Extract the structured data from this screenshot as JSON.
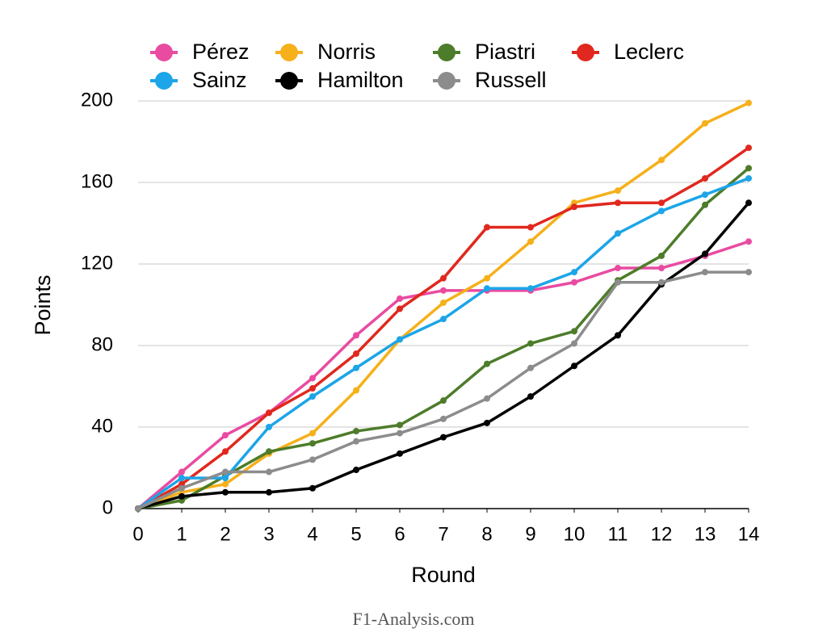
{
  "chart_data": {
    "type": "line",
    "x_label": "Round",
    "y_label": "Points",
    "footer": "F1-Analysis.com",
    "x": [
      0,
      1,
      2,
      3,
      4,
      5,
      6,
      7,
      8,
      9,
      10,
      11,
      12,
      13,
      14
    ],
    "xlim": [
      0,
      14
    ],
    "xticks": [
      0,
      1,
      2,
      3,
      4,
      5,
      6,
      7,
      8,
      9,
      10,
      11,
      12,
      13,
      14
    ],
    "ylim": [
      0,
      200
    ],
    "yticks": [
      0,
      40,
      80,
      120,
      160,
      200
    ],
    "grid": true,
    "legend": "top",
    "series": [
      {
        "name": "Pérez",
        "color": "#e94ba1",
        "values": [
          0,
          18,
          36,
          47,
          64,
          85,
          103,
          107,
          107,
          107,
          111,
          118,
          118,
          124,
          131
        ]
      },
      {
        "name": "Norris",
        "color": "#f5b01a",
        "values": [
          0,
          8,
          12,
          27,
          37,
          58,
          83,
          101,
          113,
          131,
          150,
          156,
          171,
          189,
          199
        ]
      },
      {
        "name": "Piastri",
        "color": "#4d7c2a",
        "values": [
          0,
          4,
          16,
          28,
          32,
          38,
          41,
          53,
          71,
          81,
          87,
          112,
          124,
          149,
          167
        ]
      },
      {
        "name": "Leclerc",
        "color": "#e0281e",
        "values": [
          0,
          12,
          28,
          47,
          59,
          76,
          98,
          113,
          138,
          138,
          148,
          150,
          150,
          162,
          177
        ]
      },
      {
        "name": "Sainz",
        "color": "#1ca5e8",
        "values": [
          0,
          15,
          15,
          40,
          55,
          69,
          83,
          93,
          108,
          108,
          116,
          135,
          146,
          154,
          162
        ]
      },
      {
        "name": "Hamilton",
        "color": "#000000",
        "values": [
          0,
          6,
          8,
          8,
          10,
          19,
          27,
          35,
          42,
          55,
          70,
          85,
          110,
          125,
          150
        ]
      },
      {
        "name": "Russell",
        "color": "#8c8c8c",
        "values": [
          0,
          10,
          18,
          18,
          24,
          33,
          37,
          44,
          54,
          69,
          81,
          111,
          111,
          116,
          116
        ]
      }
    ]
  }
}
